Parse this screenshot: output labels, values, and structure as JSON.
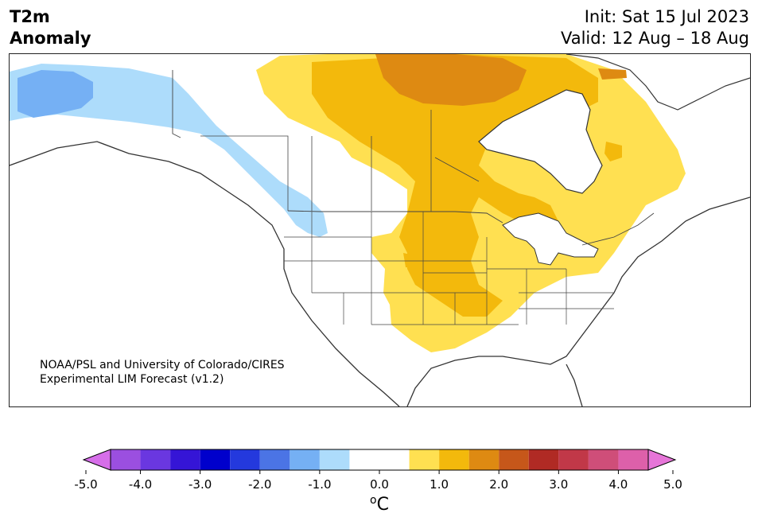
{
  "title": {
    "line1": "T2m",
    "line2": "Anomaly",
    "init": "Init: Sat 15 Jul 2023",
    "valid": "Valid: 12 Aug – 18 Aug"
  },
  "credit": {
    "line1": "NOAA/PSL and University of Colorado/CIRES",
    "line2": "Experimental LIM Forecast (v1.2)"
  },
  "colorbar": {
    "unit_superscript": "o",
    "unit": "C",
    "ticks": [
      "-5.0",
      "-4.0",
      "-3.0",
      "-2.0",
      "-1.0",
      "0.0",
      "1.0",
      "2.0",
      "3.0",
      "4.0",
      "5.0"
    ],
    "tick_values": [
      -5,
      -4,
      -3,
      -2,
      -1,
      0,
      1,
      2,
      3,
      4,
      5
    ],
    "under_color": "#d66ee9",
    "over_color": "#e675d8",
    "bins": [
      {
        "from": -4.5,
        "to": -4.0,
        "color": "#9b4fe0"
      },
      {
        "from": -4.0,
        "to": -3.5,
        "color": "#6a37e0"
      },
      {
        "from": -3.5,
        "to": -3.0,
        "color": "#3515d6"
      },
      {
        "from": -3.0,
        "to": -2.5,
        "color": "#0000cc"
      },
      {
        "from": -2.5,
        "to": -2.0,
        "color": "#2439dd"
      },
      {
        "from": -2.0,
        "to": -1.5,
        "color": "#4b74e5"
      },
      {
        "from": -1.5,
        "to": -1.0,
        "color": "#75b0f4"
      },
      {
        "from": -1.0,
        "to": -0.5,
        "color": "#addcfb"
      },
      {
        "from": -0.5,
        "to": 0.5,
        "color": "#ffffff"
      },
      {
        "from": 0.5,
        "to": 1.0,
        "color": "#ffe051"
      },
      {
        "from": 1.0,
        "to": 1.5,
        "color": "#f3b90c"
      },
      {
        "from": 1.5,
        "to": 2.0,
        "color": "#de8a12"
      },
      {
        "from": 2.0,
        "to": 2.5,
        "color": "#c6571a"
      },
      {
        "from": 2.5,
        "to": 3.0,
        "color": "#b02a24"
      },
      {
        "from": 3.0,
        "to": 3.5,
        "color": "#c13848"
      },
      {
        "from": 3.5,
        "to": 4.0,
        "color": "#cf4e79"
      },
      {
        "from": 4.0,
        "to": 4.5,
        "color": "#dd60aa"
      }
    ]
  },
  "map_colors": {
    "light_blue": "#addcfb",
    "mid_blue": "#75b0f4",
    "yellow": "#ffe051",
    "gold": "#f3b90c",
    "orange": "#de8a12",
    "coast": "#333333",
    "border": "#444444"
  }
}
